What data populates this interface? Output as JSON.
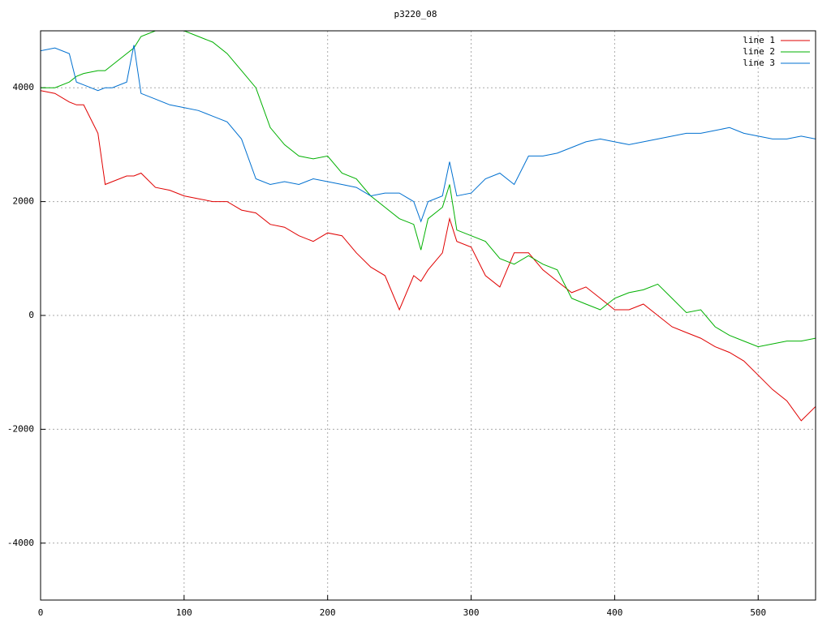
{
  "chart_data": {
    "type": "line",
    "title": "p3220_08",
    "x": [
      0,
      10,
      20,
      25,
      30,
      40,
      45,
      50,
      60,
      65,
      70,
      80,
      90,
      100,
      110,
      120,
      130,
      140,
      150,
      160,
      170,
      180,
      190,
      200,
      210,
      220,
      230,
      240,
      250,
      260,
      265,
      270,
      280,
      285,
      290,
      300,
      310,
      320,
      330,
      340,
      350,
      360,
      370,
      380,
      390,
      400,
      410,
      420,
      430,
      440,
      450,
      460,
      470,
      480,
      490,
      500,
      510,
      520,
      530,
      540
    ],
    "series": [
      {
        "name": "line 1",
        "color": "#e00000",
        "values": [
          3950,
          3900,
          3750,
          3700,
          3700,
          3200,
          2300,
          2350,
          2450,
          2450,
          2500,
          2250,
          2200,
          2100,
          2050,
          2000,
          2000,
          1850,
          1800,
          1600,
          1550,
          1400,
          1300,
          1450,
          1400,
          1100,
          850,
          700,
          100,
          700,
          600,
          800,
          1100,
          1700,
          1300,
          1200,
          700,
          500,
          1100,
          1100,
          800,
          600,
          400,
          500,
          300,
          100,
          100,
          200,
          0,
          -200,
          -300,
          -400,
          -550,
          -650,
          -800,
          -1050,
          -1300,
          -1500,
          -1850,
          -1600
        ]
      },
      {
        "name": "line 2",
        "color": "#00b000",
        "values": [
          4000,
          4000,
          4100,
          4200,
          4250,
          4300,
          4300,
          4400,
          4600,
          4700,
          4900,
          5000,
          5000,
          5000,
          4900,
          4800,
          4600,
          4300,
          4000,
          3300,
          3000,
          2800,
          2750,
          2800,
          2500,
          2400,
          2100,
          1900,
          1700,
          1600,
          1150,
          1700,
          1900,
          2300,
          1500,
          1400,
          1300,
          1000,
          900,
          1050,
          900,
          800,
          300,
          200,
          100,
          300,
          400,
          450,
          550,
          300,
          50,
          100,
          -200,
          -350,
          -450,
          -550,
          -500,
          -450,
          -450,
          -400
        ]
      },
      {
        "name": "line 3",
        "color": "#0070d0",
        "values": [
          4650,
          4700,
          4600,
          4100,
          4050,
          3950,
          4000,
          4000,
          4100,
          4750,
          3900,
          3800,
          3700,
          3650,
          3600,
          3500,
          3400,
          3100,
          2400,
          2300,
          2350,
          2300,
          2400,
          2350,
          2300,
          2250,
          2100,
          2150,
          2150,
          2000,
          1650,
          2000,
          2100,
          2700,
          2100,
          2150,
          2400,
          2500,
          2300,
          2800,
          2800,
          2850,
          2950,
          3050,
          3100,
          3050,
          3000,
          3050,
          3100,
          3150,
          3200,
          3200,
          3250,
          3300,
          3200,
          3150,
          3100,
          3100,
          3150,
          3100
        ]
      }
    ],
    "xlim": [
      0,
      540
    ],
    "xticks": [
      0,
      100,
      200,
      300,
      400,
      500
    ],
    "ylim": [
      -5000,
      5000
    ],
    "yticks": [
      -4000,
      -2000,
      0,
      2000,
      4000
    ],
    "grid": true,
    "legend": "top-right"
  }
}
